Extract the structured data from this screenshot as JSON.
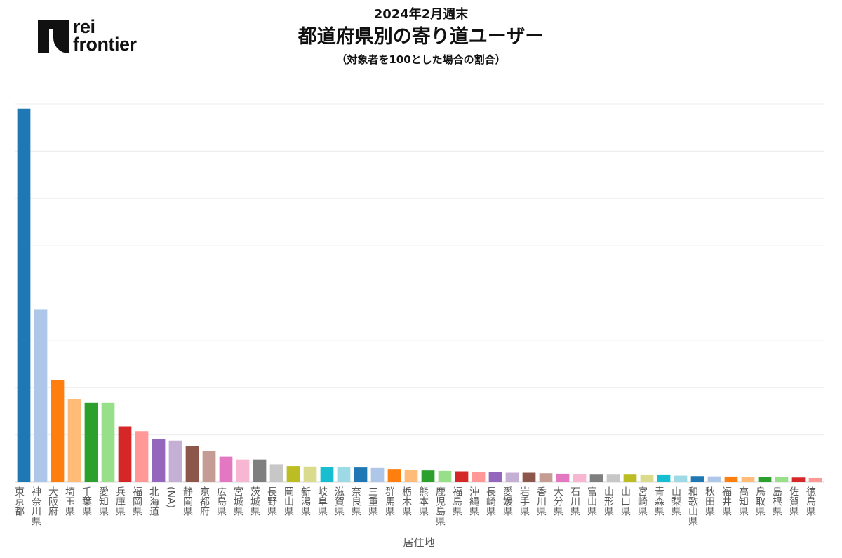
{
  "logo": {
    "line1": "rei",
    "line2": "frontier"
  },
  "header": {
    "subtitle": "2024年2月週末",
    "title": "都道府県別の寄り道ユーザー",
    "note": "（対象者を100とした場合の割合）"
  },
  "chart_data": {
    "type": "bar",
    "title": "都道府県別の寄り道ユーザー",
    "xlabel": "居住地",
    "ylabel": "",
    "ylim": [
      0,
      40
    ],
    "grid": true,
    "categories": [
      "東京都",
      "神奈川県",
      "大阪府",
      "埼玉県",
      "千葉県",
      "愛知県",
      "兵庫県",
      "福岡県",
      "北海道",
      "(NA)",
      "静岡県",
      "京都府",
      "広島県",
      "宮城県",
      "茨城県",
      "長野県",
      "岡山県",
      "新潟県",
      "岐阜県",
      "滋賀県",
      "奈良県",
      "三重県",
      "群馬県",
      "栃木県",
      "熊本県",
      "鹿児島県",
      "福島県",
      "沖縄県",
      "長崎県",
      "愛媛県",
      "岩手県",
      "香川県",
      "大分県",
      "石川県",
      "富山県",
      "山形県",
      "山口県",
      "宮崎県",
      "青森県",
      "山梨県",
      "和歌山県",
      "秋田県",
      "福井県",
      "高知県",
      "鳥取県",
      "島根県",
      "佐賀県",
      "徳島県"
    ],
    "values": [
      39.5,
      18.3,
      10.8,
      8.8,
      8.4,
      8.4,
      5.9,
      5.4,
      4.6,
      4.4,
      3.8,
      3.3,
      2.7,
      2.4,
      2.4,
      1.9,
      1.7,
      1.65,
      1.6,
      1.6,
      1.55,
      1.5,
      1.4,
      1.3,
      1.25,
      1.2,
      1.15,
      1.1,
      1.05,
      1.0,
      1.0,
      0.95,
      0.9,
      0.85,
      0.8,
      0.8,
      0.8,
      0.75,
      0.75,
      0.7,
      0.65,
      0.62,
      0.6,
      0.55,
      0.55,
      0.52,
      0.5,
      0.45
    ],
    "colors": [
      "#1f77b4",
      "#aec7e8",
      "#ff7f0e",
      "#ffbb78",
      "#2ca02c",
      "#98df8a",
      "#d62728",
      "#ff9896",
      "#9467bd",
      "#c5b0d5",
      "#8c564b",
      "#c49c94",
      "#e377c2",
      "#f7b6d2",
      "#7f7f7f",
      "#c7c7c7",
      "#bcbd22",
      "#dbdb8d",
      "#17becf",
      "#9edae5"
    ]
  }
}
